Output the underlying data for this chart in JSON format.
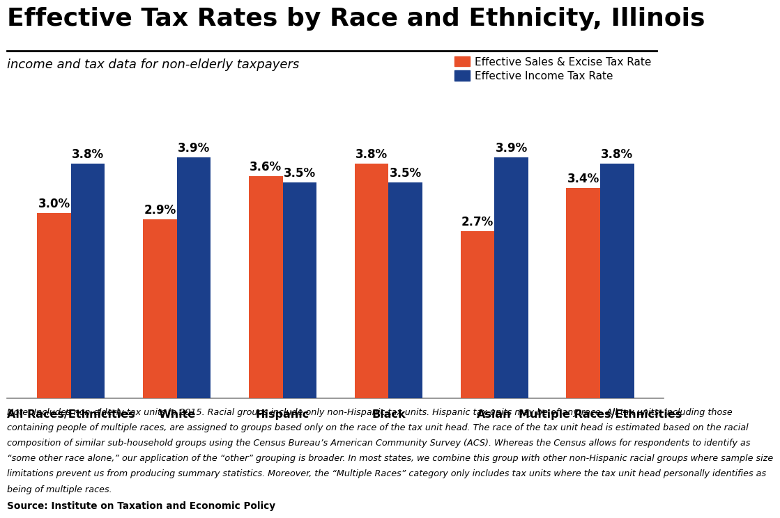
{
  "title": "Effective Tax Rates by Race and Ethnicity, Illinois",
  "subtitle": "income and tax data for non-elderly taxpayers",
  "categories": [
    "All Races/Ethnicities",
    "White",
    "Hispanic",
    "Black",
    "Asian",
    "Multiple Races/Ethnicities"
  ],
  "sales_excise": [
    3.0,
    2.9,
    3.6,
    3.8,
    2.7,
    3.4
  ],
  "income_tax": [
    3.8,
    3.9,
    3.5,
    3.5,
    3.9,
    3.8
  ],
  "orange_color": "#E8502A",
  "blue_color": "#1B3F8B",
  "legend_labels": [
    "Effective Sales & Excise Tax Rate",
    "Effective Income Tax Rate"
  ],
  "note_line1": "Note: Includes non-elderly tax units in 2015. Racial groups include only non-Hispanic tax units. Hispanic tax units may be of any race. All tax units, including those",
  "note_line2": "containing people of multiple races, are assigned to groups based only on the race of the tax unit head. The race of the tax unit head is estimated based on the racial",
  "note_line3": "composition of similar sub-household groups using the Census Bureau’s American Community Survey (ACS). Whereas the Census allows for respondents to identify as",
  "note_line4": "“some other race alone,” our application of the “other” grouping is broader. In most states, we combine this group with other non-Hispanic racial groups where sample size",
  "note_line5": "limitations prevent us from producing summary statistics. Moreover, the “Multiple Races” category only includes tax units where the tax unit head personally identifies as",
  "note_line6": "being of multiple races.",
  "source_text": "Source: Institute on Taxation and Economic Policy",
  "ylim": [
    0,
    4.6
  ],
  "bar_width": 0.32,
  "title_fontsize": 26,
  "subtitle_fontsize": 13,
  "bar_label_fontsize": 12,
  "tick_fontsize": 11.5,
  "legend_fontsize": 11,
  "note_fontsize": 9.2,
  "source_fontsize": 9.8,
  "background_color": "#FFFFFF"
}
